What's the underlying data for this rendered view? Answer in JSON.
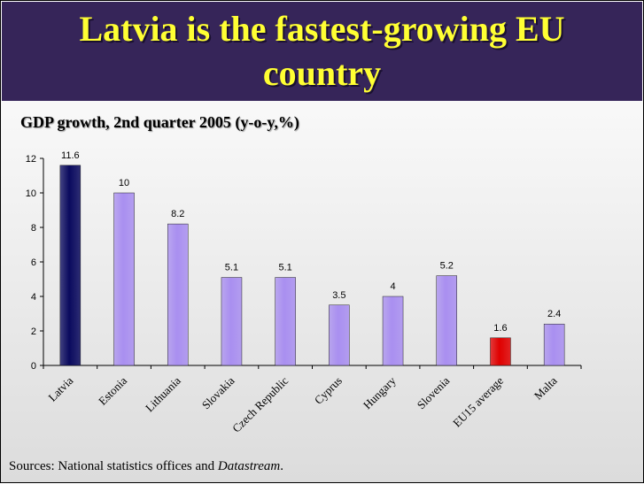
{
  "title": "Latvia is the fastest-growing EU country",
  "subtitle": "GDP growth, 2nd quarter 2005 (y-o-y,%)",
  "source": {
    "prefix": "Sources: National statistics offices and ",
    "emphasis": "Datastream",
    "suffix": "."
  },
  "colors": {
    "title_band": "#362559",
    "title_text": "#ffff33",
    "highlight_bar": "#0a0a5e",
    "default_bar": "#a98ff0",
    "eu_bar": "#e00000"
  },
  "chart_data": {
    "type": "bar",
    "title": "GDP growth, 2nd quarter 2005 (y-o-y,%)",
    "xlabel": "",
    "ylabel": "",
    "ylim": [
      0,
      12
    ],
    "yticks": [
      0,
      2,
      4,
      6,
      8,
      10,
      12
    ],
    "grid": false,
    "legend": "none",
    "categories": [
      "Latvia",
      "Estonia",
      "Lithuania",
      "Slovakia",
      "Czech Republic",
      "Cyprus",
      "Hungary",
      "Slovenia",
      "EU15 average",
      "Malta"
    ],
    "values": [
      11.6,
      10,
      8.2,
      5.1,
      5.1,
      3.5,
      4,
      5.2,
      1.6,
      2.4
    ],
    "value_labels": [
      "11.6",
      "10",
      "8.2",
      "5.1",
      "5.1",
      "3.5",
      "4",
      "5.2",
      "1.6",
      "2.4"
    ],
    "bar_colors": [
      "#0a0a5e",
      "#a98ff0",
      "#a98ff0",
      "#a98ff0",
      "#a98ff0",
      "#a98ff0",
      "#a98ff0",
      "#a98ff0",
      "#e00000",
      "#a98ff0"
    ]
  }
}
